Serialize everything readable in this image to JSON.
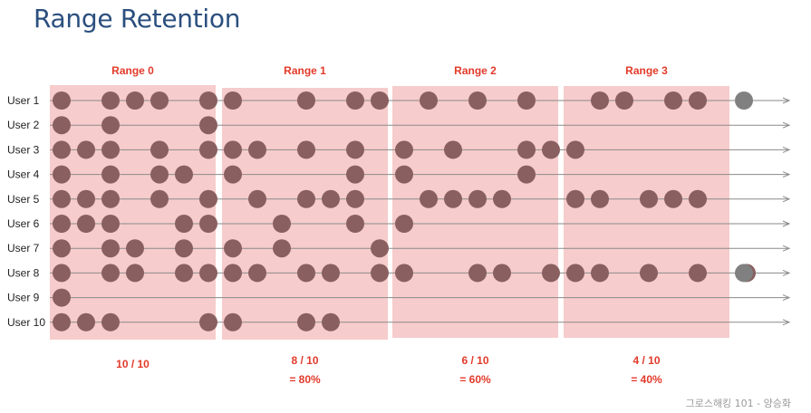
{
  "page": {
    "title": "Range Retention",
    "footer": "그로스해킹 101 - 양승화"
  },
  "colors": {
    "title": "#2b4f7e",
    "range_fill": "#f7cccc",
    "range_label": "#e23a2a",
    "dot": "#8a5f5f",
    "dot_extra": "#808080",
    "timeline": "#8a8a8a",
    "user_label": "#222222"
  },
  "ranges": [
    {
      "label": "Range 0",
      "summary": "10 / 10",
      "percent": ""
    },
    {
      "label": "Range 1",
      "summary": "8 / 10",
      "percent": "= 80%"
    },
    {
      "label": "Range 2",
      "summary": "6 / 10",
      "percent": "= 60%"
    },
    {
      "label": "Range 3",
      "summary": "4 / 10",
      "percent": "= 40%"
    }
  ],
  "users": [
    {
      "label": "User 1",
      "slots": [
        0,
        2,
        3,
        4,
        6,
        7,
        10,
        12,
        13,
        15,
        17,
        19,
        22,
        23,
        25,
        26
      ],
      "extra": true
    },
    {
      "label": "User 2",
      "slots": [
        0,
        2,
        6
      ],
      "extra": false
    },
    {
      "label": "User 3",
      "slots": [
        0,
        1,
        2,
        4,
        6,
        7,
        8,
        10,
        12,
        14,
        16,
        19,
        20,
        21
      ],
      "extra": false
    },
    {
      "label": "User 4",
      "slots": [
        0,
        2,
        4,
        5,
        7,
        12,
        14,
        19
      ],
      "extra": false
    },
    {
      "label": "User 5",
      "slots": [
        0,
        1,
        2,
        4,
        6,
        8,
        10,
        11,
        12,
        15,
        16,
        17,
        18,
        21,
        22,
        24,
        25,
        26
      ],
      "extra": false
    },
    {
      "label": "User 6",
      "slots": [
        0,
        1,
        2,
        5,
        6,
        9,
        12,
        14
      ],
      "extra": false
    },
    {
      "label": "User 7",
      "slots": [
        0,
        2,
        3,
        5,
        7,
        9,
        13
      ],
      "extra": false
    },
    {
      "label": "User 8",
      "slots": [
        0,
        2,
        3,
        5,
        6,
        7,
        8,
        10,
        11,
        13,
        14,
        17,
        18,
        20,
        21,
        22,
        24,
        26,
        28
      ],
      "extra": true
    },
    {
      "label": "User 9",
      "slots": [
        0
      ],
      "extra": false
    },
    {
      "label": "User 10",
      "slots": [
        0,
        1,
        2,
        6,
        7,
        10,
        11
      ],
      "extra": false
    }
  ]
}
